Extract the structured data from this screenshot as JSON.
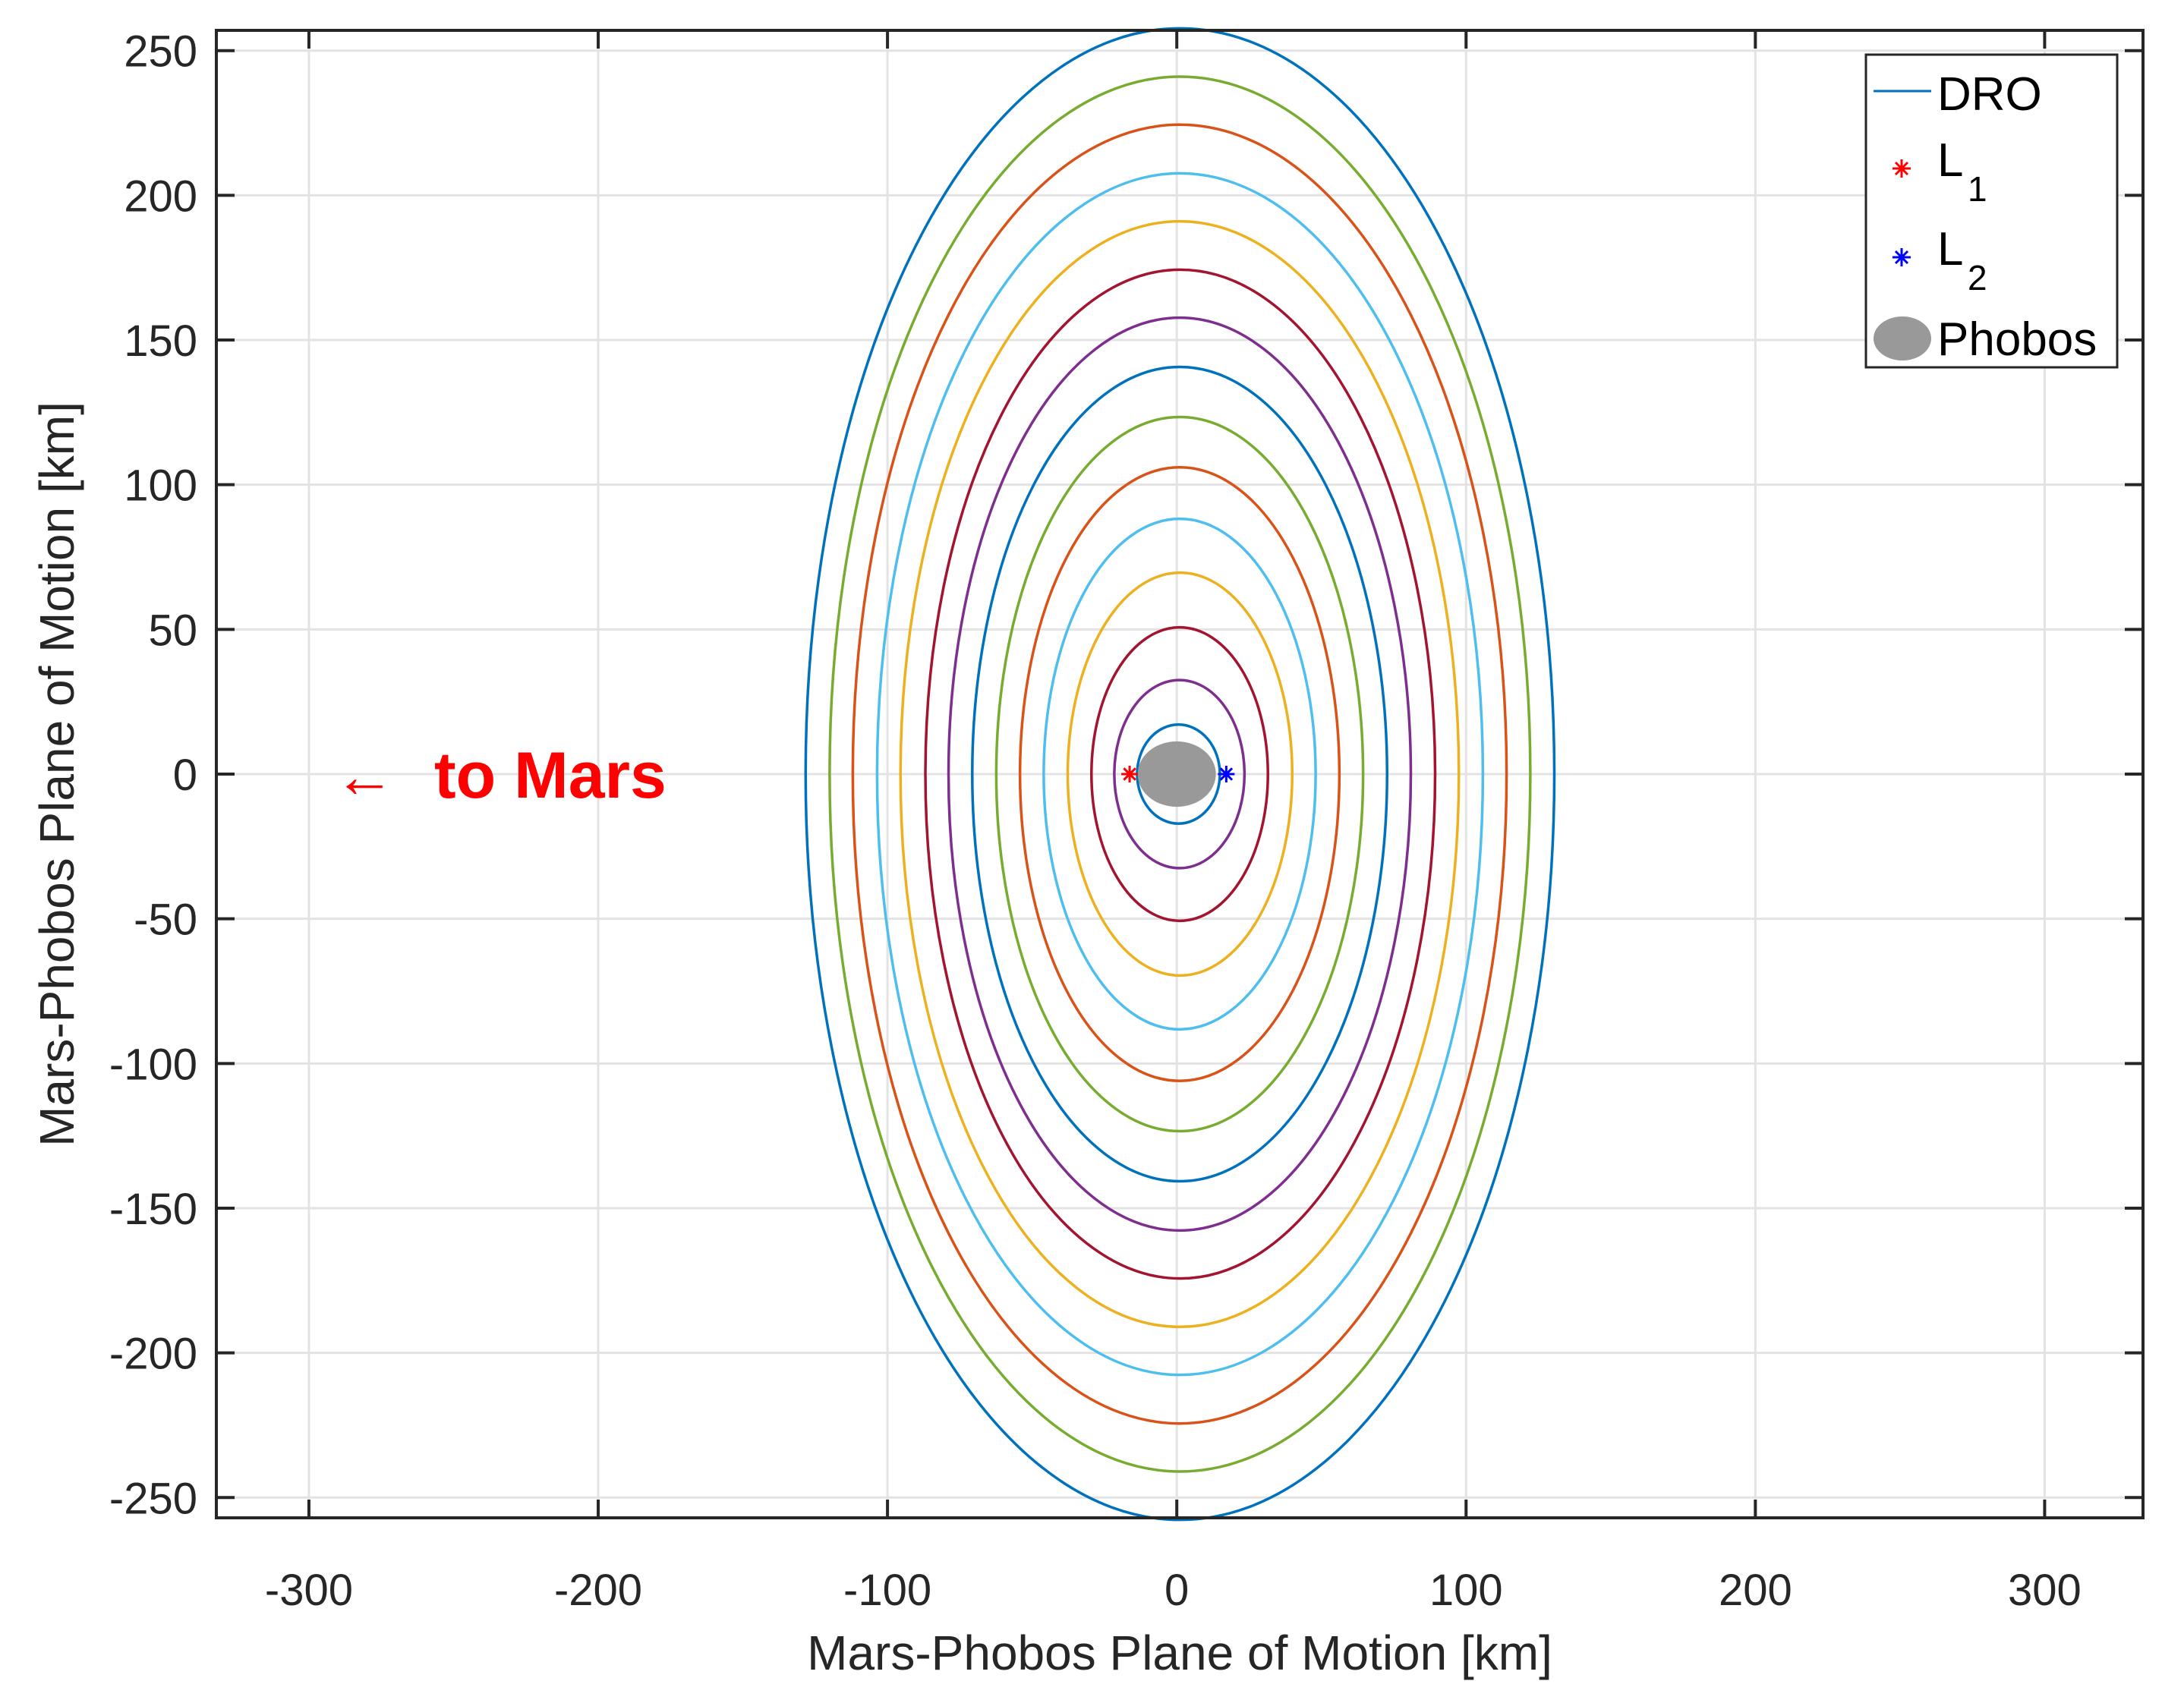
{
  "chart_data": {
    "type": "line",
    "title": "",
    "xlabel": "Mars-Phobos Plane of Motion [km]",
    "ylabel": "Mars-Phobos Plane of Motion [km]",
    "xlim": [
      -332,
      334
    ],
    "ylim": [
      -257,
      257
    ],
    "xticks": [
      -300,
      -200,
      -100,
      0,
      100,
      200,
      300
    ],
    "yticks": [
      -250,
      -200,
      -150,
      -100,
      -50,
      0,
      50,
      100,
      150,
      200,
      250
    ],
    "xtick_labels": [
      "-300",
      "-200",
      "-100",
      "0",
      "100",
      "200",
      "300"
    ],
    "ytick_labels": [
      "-250",
      "-200",
      "-150",
      "-100",
      "-50",
      "0",
      "50",
      "100",
      "150",
      "200",
      "250"
    ],
    "grid": true,
    "legend_position": "northeast",
    "legend": [
      {
        "label": "DRO",
        "sub": "",
        "marker": "line",
        "color": "#0072BD"
      },
      {
        "label": "L",
        "sub": "1",
        "marker": "asterisk",
        "color": "#FF0000"
      },
      {
        "label": "L",
        "sub": "2",
        "marker": "asterisk",
        "color": "#0000FF"
      },
      {
        "label": "Phobos",
        "sub": "",
        "marker": "filled-ellipse",
        "color": "#999999"
      }
    ],
    "series": [
      {
        "name": "DRO",
        "shape": "ellipse",
        "cx": 1.1,
        "cy": 0,
        "semi_x": 129.4,
        "semi_y": 257.7,
        "color": "#0072BD"
      },
      {
        "name": "DRO",
        "shape": "ellipse",
        "cx": 1.1,
        "cy": 0,
        "semi_x": 121.1,
        "semi_y": 241.0,
        "color": "#77AC30"
      },
      {
        "name": "DRO",
        "shape": "ellipse",
        "cx": 1.0,
        "cy": 0,
        "semi_x": 113.0,
        "semi_y": 224.4,
        "color": "#D95319"
      },
      {
        "name": "DRO",
        "shape": "ellipse",
        "cx": 1.1,
        "cy": 0,
        "semi_x": 104.7,
        "semi_y": 207.6,
        "color": "#4DBEEE"
      },
      {
        "name": "DRO",
        "shape": "ellipse",
        "cx": 1.0,
        "cy": 0,
        "semi_x": 96.5,
        "semi_y": 191.0,
        "color": "#EDB120"
      },
      {
        "name": "DRO",
        "shape": "ellipse",
        "cx": 1.2,
        "cy": 0,
        "semi_x": 88.1,
        "semi_y": 174.3,
        "color": "#A2142F"
      },
      {
        "name": "DRO",
        "shape": "ellipse",
        "cx": 1.0,
        "cy": 0,
        "semi_x": 79.9,
        "semi_y": 157.7,
        "color": "#7E2F8E"
      },
      {
        "name": "DRO",
        "shape": "ellipse",
        "cx": 1.0,
        "cy": 0,
        "semi_x": 71.7,
        "semi_y": 140.7,
        "color": "#0072BD"
      },
      {
        "name": "DRO",
        "shape": "ellipse",
        "cx": 1.0,
        "cy": 0,
        "semi_x": 63.4,
        "semi_y": 123.4,
        "color": "#77AC30"
      },
      {
        "name": "DRO",
        "shape": "ellipse",
        "cx": 1.0,
        "cy": 0,
        "semi_x": 55.2,
        "semi_y": 106.0,
        "color": "#D95319"
      },
      {
        "name": "DRO",
        "shape": "ellipse",
        "cx": 1.0,
        "cy": 0,
        "semi_x": 47.0,
        "semi_y": 88.2,
        "color": "#4DBEEE"
      },
      {
        "name": "DRO",
        "shape": "ellipse",
        "cx": 1.1,
        "cy": 0,
        "semi_x": 38.8,
        "semi_y": 69.6,
        "color": "#EDB120"
      },
      {
        "name": "DRO",
        "shape": "ellipse",
        "cx": 1.0,
        "cy": 0,
        "semi_x": 30.5,
        "semi_y": 50.7,
        "color": "#A2142F"
      },
      {
        "name": "DRO",
        "shape": "ellipse",
        "cx": 0.9,
        "cy": 0,
        "semi_x": 22.5,
        "semi_y": 32.5,
        "color": "#7E2F8E"
      },
      {
        "name": "DRO",
        "shape": "ellipse",
        "cx": 0.6,
        "cy": 0,
        "semi_x": 14.3,
        "semi_y": 17.1,
        "color": "#0072BD"
      }
    ],
    "points": [
      {
        "name": "L1",
        "x": -16.3,
        "y": 0,
        "marker": "asterisk",
        "color": "#FF0000"
      },
      {
        "name": "L2",
        "x": 17.1,
        "y": 0,
        "marker": "asterisk",
        "color": "#0000FF"
      }
    ],
    "bodies": [
      {
        "name": "Phobos",
        "cx": 0,
        "cy": 0,
        "semi_x": 13.5,
        "semi_y": 11.3,
        "color": "#999999"
      }
    ],
    "annotations": [
      {
        "text": "← to Mars",
        "x": -290,
        "y": 0,
        "color": "#FF0000",
        "bold": true
      }
    ]
  },
  "labels": {
    "xlabel": "Mars-Phobos Plane of Motion [km]",
    "ylabel": "Mars-Phobos Plane of Motion [km]",
    "annotation_arrow": "←",
    "annotation_text": "to Mars",
    "legend": {
      "dro": "DRO",
      "l1_main": "L",
      "l1_sub": "1",
      "l2_main": "L",
      "l2_sub": "2",
      "phobos": "Phobos"
    }
  },
  "colors": {
    "axis": "#262626",
    "grid": "#e3e3e3",
    "phobos": "#999999",
    "l1": "#FF0000",
    "l2": "#0000FF",
    "annotation": "#FF0000"
  }
}
